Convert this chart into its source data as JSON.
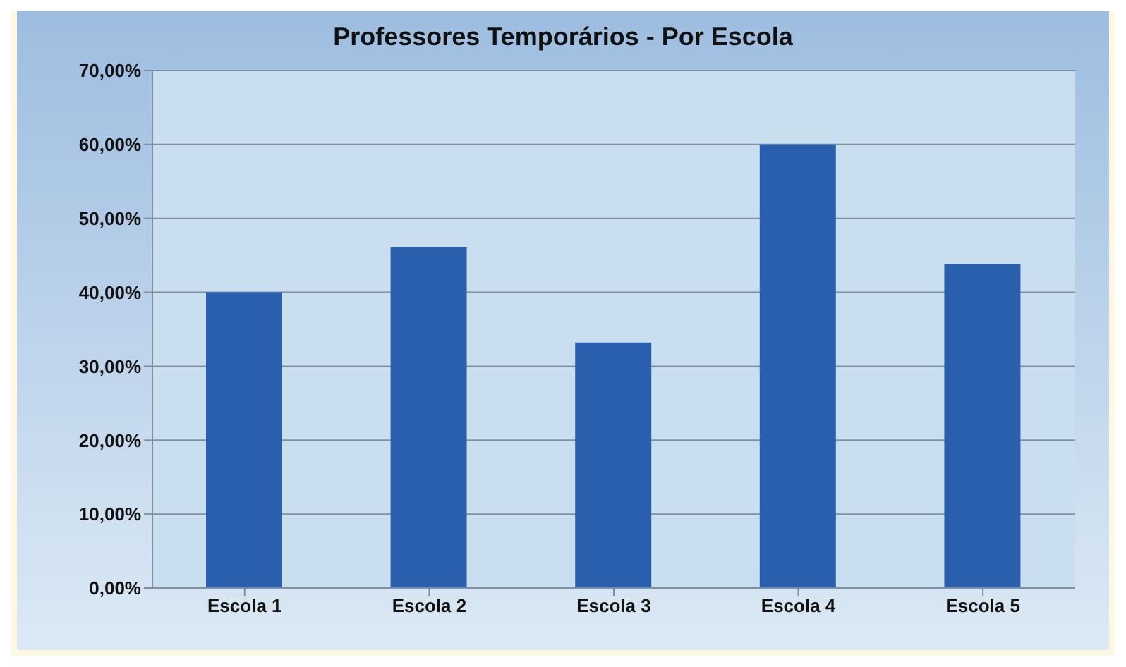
{
  "chart_data": {
    "type": "bar",
    "title": "Professores Temporários - Por Escola",
    "categories": [
      "Escola 1",
      "Escola 2",
      "Escola 3",
      "Escola 4",
      "Escola 5"
    ],
    "values": [
      40,
      46.1,
      33.2,
      60,
      43.8
    ],
    "color": "#2a5fae",
    "ylim": [
      0,
      70
    ],
    "yticks": [
      {
        "value": 0,
        "label": "0,00%"
      },
      {
        "value": 10,
        "label": "10,00%"
      },
      {
        "value": 20,
        "label": "20,00%"
      },
      {
        "value": 30,
        "label": "30,00%"
      },
      {
        "value": 40,
        "label": "40,00%"
      },
      {
        "value": 50,
        "label": "50,00%"
      },
      {
        "value": 60,
        "label": "60,00%"
      },
      {
        "value": 70,
        "label": "70,00%"
      }
    ],
    "grid": "y"
  }
}
